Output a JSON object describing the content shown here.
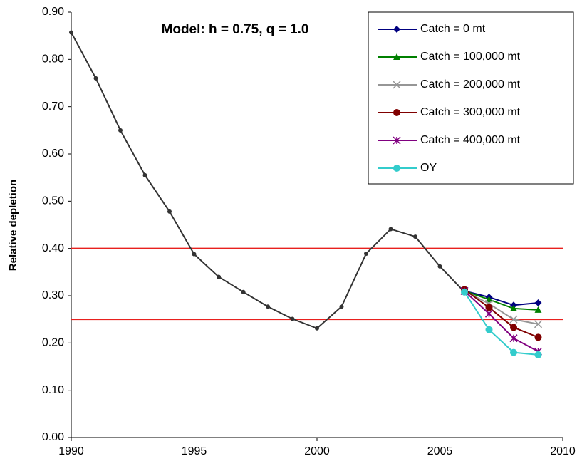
{
  "chart_data": {
    "type": "line",
    "title": "Model: h = 0.75, q = 1.0",
    "y_label": "Relative depletion",
    "xlim": [
      1990,
      2010
    ],
    "xticks": [
      1990,
      1995,
      2000,
      2005,
      2010
    ],
    "ylim": [
      0,
      0.9
    ],
    "yticks": [
      {
        "value": 0,
        "label": "0.00"
      },
      {
        "value": 0.1,
        "label": "0.10"
      },
      {
        "value": 0.2,
        "label": "0.20"
      },
      {
        "value": 0.3,
        "label": "0.30"
      },
      {
        "value": 0.4,
        "label": "0.40"
      },
      {
        "value": 0.5,
        "label": "0.50"
      },
      {
        "value": 0.6,
        "label": "0.60"
      },
      {
        "value": 0.7,
        "label": "0.70"
      },
      {
        "value": 0.8,
        "label": "0.80"
      },
      {
        "value": 0.9,
        "label": "0.90"
      }
    ],
    "legend": "upper right",
    "hlines": [
      {
        "value": 0.4,
        "color": "#e8201e"
      },
      {
        "value": 0.25,
        "color": "#e8201e"
      }
    ],
    "history": {
      "color": "#333333",
      "marker": "circle",
      "x": [
        1990,
        1991,
        1992,
        1993,
        1994,
        1995,
        1996,
        1997,
        1998,
        1999,
        2000,
        2001,
        2002,
        2003,
        2004,
        2005,
        2006
      ],
      "values": [
        0.857,
        0.76,
        0.65,
        0.555,
        0.478,
        0.388,
        0.34,
        0.308,
        0.277,
        0.251,
        0.231,
        0.277,
        0.389,
        0.441,
        0.425,
        0.362,
        0.308
      ]
    },
    "series": [
      {
        "name": "Catch = 0 mt",
        "color": "#000080",
        "marker": "diamond",
        "x": [
          2006,
          2007,
          2008,
          2009
        ],
        "values": [
          0.31,
          0.297,
          0.28,
          0.285
        ]
      },
      {
        "name": "Catch = 100,000 mt",
        "color": "#008000",
        "marker": "triangle",
        "x": [
          2006,
          2007,
          2008,
          2009
        ],
        "values": [
          0.31,
          0.292,
          0.273,
          0.27
        ]
      },
      {
        "name": "Catch = 200,000 mt",
        "color": "#969696",
        "marker": "x",
        "x": [
          2006,
          2007,
          2008,
          2009
        ],
        "values": [
          0.31,
          0.283,
          0.25,
          0.24
        ]
      },
      {
        "name": "Catch = 300,000 mt",
        "color": "#800000",
        "marker": "circle",
        "x": [
          2006,
          2007,
          2008,
          2009
        ],
        "values": [
          0.313,
          0.275,
          0.233,
          0.212
        ]
      },
      {
        "name": "Catch = 400,000 mt",
        "color": "#800080",
        "marker": "star",
        "x": [
          2006,
          2007,
          2008,
          2009
        ],
        "values": [
          0.31,
          0.262,
          0.21,
          0.182
        ]
      },
      {
        "name": "OY",
        "color": "#33cccc",
        "marker": "circle",
        "x": [
          2006,
          2007,
          2008,
          2009
        ],
        "values": [
          0.308,
          0.228,
          0.18,
          0.175
        ]
      }
    ]
  }
}
